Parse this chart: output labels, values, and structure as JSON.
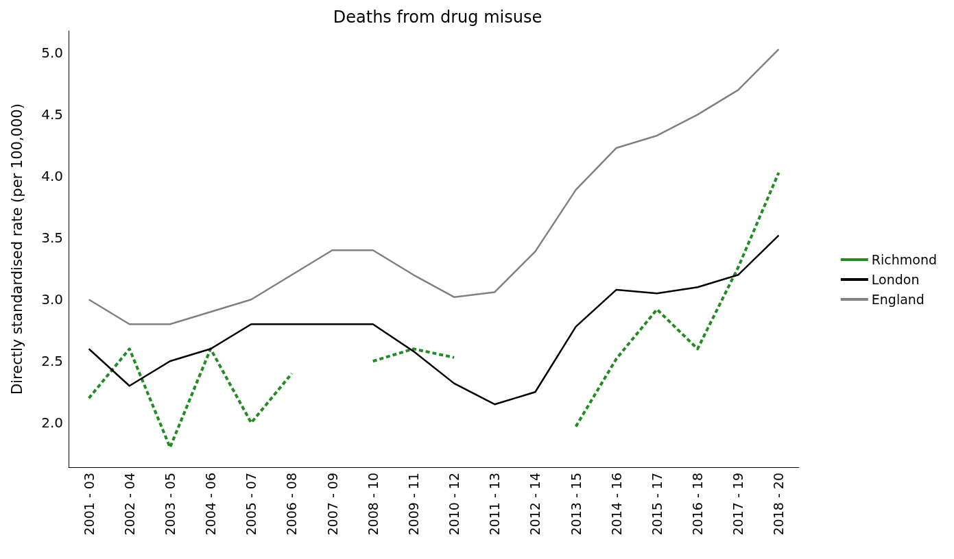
{
  "chart_data": {
    "type": "line",
    "title": "Deaths from drug misuse",
    "ylabel": "Directly standardised rate (per 100,000)",
    "categories": [
      "2001 - 03",
      "2002 - 04",
      "2003 - 05",
      "2004 - 06",
      "2005 - 07",
      "2006 - 08",
      "2007 - 09",
      "2008 - 10",
      "2009 - 11",
      "2010 - 12",
      "2011 - 13",
      "2012 - 14",
      "2013 - 15",
      "2014 - 16",
      "2015 - 17",
      "2016 - 18",
      "2017 - 19",
      "2018 - 20"
    ],
    "series": [
      {
        "name": "Richmond",
        "color": "#228b22",
        "line_style": "dashed",
        "values": [
          2.2,
          2.6,
          1.8,
          2.6,
          2.0,
          2.4,
          null,
          2.5,
          2.6,
          2.53,
          null,
          null,
          1.97,
          2.52,
          2.92,
          2.6,
          3.26,
          4.03
        ]
      },
      {
        "name": "London",
        "color": "#000000",
        "line_style": "solid",
        "values": [
          2.6,
          2.3,
          2.5,
          2.6,
          2.8,
          2.8,
          2.8,
          2.8,
          2.58,
          2.32,
          2.15,
          2.25,
          2.78,
          3.08,
          3.05,
          3.1,
          3.2,
          3.52
        ]
      },
      {
        "name": "England",
        "color": "#808080",
        "line_style": "solid",
        "values": [
          3.0,
          2.8,
          2.8,
          2.9,
          3.0,
          3.2,
          3.4,
          3.4,
          3.2,
          3.02,
          3.06,
          3.39,
          3.89,
          4.23,
          4.33,
          4.5,
          4.7,
          5.03
        ]
      }
    ],
    "ylim": [
      1.64,
      5.18
    ],
    "yticks": [
      {
        "value": 2,
        "label": "2.0"
      },
      {
        "value": 2.5,
        "label": "2.5"
      },
      {
        "value": 3,
        "label": "3.0"
      },
      {
        "value": 3.5,
        "label": "3.5"
      },
      {
        "value": 4,
        "label": "4.0"
      },
      {
        "value": 4.5,
        "label": "4.5"
      },
      {
        "value": 5,
        "label": "5.0"
      }
    ],
    "grid": false,
    "legend": "right",
    "marker": "none"
  }
}
